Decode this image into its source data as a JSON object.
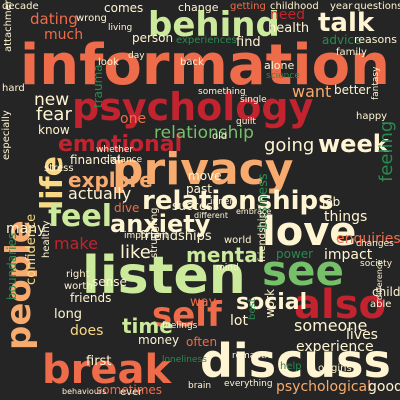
{
  "palette": {
    "background": "#252525",
    "red": "#c3232e",
    "orange": "#ef6c4b",
    "peach": "#f8ab6e",
    "yellow": "#f9d985",
    "cream": "#fff5d2",
    "mint": "#ccea9c",
    "green": "#76c06a",
    "dark_green": "#2a8a4f"
  },
  "words": [
    {
      "id": "information",
      "text": "information",
      "color": "#ef6c4b"
    },
    {
      "id": "psychology",
      "text": "psychology",
      "color": "#c3232e"
    },
    {
      "id": "privacy",
      "text": "privacy",
      "color": "#f8ab6e"
    },
    {
      "id": "listen",
      "text": "listen",
      "color": "#ccea9c"
    },
    {
      "id": "discuss",
      "text": "discuss",
      "color": "#fff5d2"
    },
    {
      "id": "break",
      "text": "break",
      "color": "#ef6c4b"
    },
    {
      "id": "self",
      "text": "self",
      "color": "#ef6c4b"
    },
    {
      "id": "see",
      "text": "see",
      "color": "#76c06a"
    },
    {
      "id": "also",
      "text": "also",
      "color": "#c3232e"
    },
    {
      "id": "people",
      "text": "people",
      "color": "#f8ab6e"
    },
    {
      "id": "life",
      "text": "life",
      "color": "#f9d985"
    },
    {
      "id": "behind",
      "text": "behind",
      "color": "#ccea9c"
    },
    {
      "id": "love",
      "text": "love",
      "color": "#fff5d2"
    },
    {
      "id": "feel",
      "text": "feel",
      "color": "#ccea9c"
    },
    {
      "id": "anxiety",
      "text": "anxiety",
      "color": "#fff5d2"
    },
    {
      "id": "relationships",
      "text": "relationships",
      "color": "#fff5d2"
    },
    {
      "id": "emotional",
      "text": "emotional",
      "color": "#c3232e"
    },
    {
      "id": "relationship",
      "text": "relationship",
      "color": "#76c06a"
    },
    {
      "id": "week",
      "text": "week",
      "color": "#fff5d2"
    },
    {
      "id": "talk",
      "text": "talk",
      "color": "#fff5d2"
    },
    {
      "id": "dating",
      "text": "dating",
      "color": "#ef6c4b"
    },
    {
      "id": "much",
      "text": "much",
      "color": "#ef6c4b"
    },
    {
      "id": "need",
      "text": "need",
      "color": "#c3232e"
    },
    {
      "id": "new",
      "text": "new",
      "color": "#fff5d2"
    },
    {
      "id": "fear",
      "text": "fear",
      "color": "#fff5d2"
    },
    {
      "id": "explore",
      "text": "explore",
      "color": "#f8ab6e"
    },
    {
      "id": "actually",
      "text": "actually",
      "color": "#fff5d2"
    },
    {
      "id": "mental",
      "text": "mental",
      "color": "#ccea9c"
    },
    {
      "id": "like",
      "text": "like",
      "color": "#fff5d2"
    },
    {
      "id": "make",
      "text": "make",
      "color": "#c3232e"
    },
    {
      "id": "social",
      "text": "social",
      "color": "#fff5d2"
    },
    {
      "id": "time",
      "text": "time",
      "color": "#ccea9c"
    },
    {
      "id": "someone",
      "text": "someone",
      "color": "#fff5d2"
    },
    {
      "id": "experience",
      "text": "experience",
      "color": "#fff5d2"
    },
    {
      "id": "psychological",
      "text": "psychological",
      "color": "#f8ab6e"
    },
    {
      "id": "going",
      "text": "going",
      "color": "#fff5d2"
    },
    {
      "id": "want",
      "text": "want",
      "color": "#f8ab6e"
    },
    {
      "id": "one",
      "text": "one",
      "color": "#ef6c4b"
    },
    {
      "id": "many",
      "text": "many",
      "color": "#fff5d2"
    },
    {
      "id": "things",
      "text": "things",
      "color": "#fff5d2"
    },
    {
      "id": "feeling",
      "text": "feeling",
      "color": "#2a8a4f"
    },
    {
      "id": "impact",
      "text": "impact",
      "color": "#fff5d2"
    },
    {
      "id": "friendships",
      "text": "friendships",
      "color": "#fff5d2"
    },
    {
      "id": "find",
      "text": "find",
      "color": "#fff5d2"
    },
    {
      "id": "health",
      "text": "health",
      "color": "#fff5d2"
    },
    {
      "id": "financial",
      "text": "financial",
      "color": "#fff5d2"
    },
    {
      "id": "enquiries",
      "text": "enquiries",
      "color": "#ef6c4b"
    },
    {
      "id": "business",
      "text": "business",
      "color": "#2a8a4f"
    },
    {
      "id": "lot",
      "text": "lot",
      "color": "#fff5d2"
    },
    {
      "id": "way",
      "text": "way",
      "color": "#ef6c4b"
    },
    {
      "id": "lives",
      "text": "lives",
      "color": "#fff5d2"
    },
    {
      "id": "friends",
      "text": "friends",
      "color": "#fff5d2"
    },
    {
      "id": "sense",
      "text": "sense",
      "color": "#fff5d2"
    },
    {
      "id": "long",
      "text": "long",
      "color": "#fff5d2"
    },
    {
      "id": "does",
      "text": "does",
      "color": "#f9d985"
    },
    {
      "id": "first",
      "text": "first",
      "color": "#fff5d2"
    },
    {
      "id": "sometimes",
      "text": "sometimes",
      "color": "#ef6c4b"
    },
    {
      "id": "often",
      "text": "often",
      "color": "#ef6c4b"
    },
    {
      "id": "money",
      "text": "money",
      "color": "#fff5d2"
    },
    {
      "id": "confidence",
      "text": "confidence",
      "color": "#f9d985"
    },
    {
      "id": "boundaries",
      "text": "boundaries",
      "color": "#2a8a4f"
    },
    {
      "id": "trauma",
      "text": "trauma",
      "color": "#2a8a4f"
    },
    {
      "id": "know",
      "text": "know",
      "color": "#fff5d2"
    },
    {
      "id": "move",
      "text": "move",
      "color": "#fff5d2"
    },
    {
      "id": "past",
      "text": "past",
      "color": "#fff5d2"
    },
    {
      "id": "dive",
      "text": "dive",
      "color": "#ef6c4b"
    },
    {
      "id": "success",
      "text": "success",
      "color": "#fff5d2"
    },
    {
      "id": "better",
      "text": "better",
      "color": "#fff5d2"
    },
    {
      "id": "advice",
      "text": "advice",
      "color": "#2a8a4f"
    },
    {
      "id": "reasons",
      "text": "reasons",
      "color": "#fff5d2"
    },
    {
      "id": "comes",
      "text": "comes",
      "color": "#fff5d2"
    },
    {
      "id": "change",
      "text": "change",
      "color": "#fff5d2"
    },
    {
      "id": "person",
      "text": "person",
      "color": "#fff5d2"
    },
    {
      "id": "getting",
      "text": "getting",
      "color": "#ef6c4b"
    },
    {
      "id": "childhood",
      "text": "childhood",
      "color": "#fff5d2"
    },
    {
      "id": "year",
      "text": "year",
      "color": "#fff5d2"
    },
    {
      "id": "questions",
      "text": "questions",
      "color": "#fff5d2"
    },
    {
      "id": "alone",
      "text": "alone",
      "color": "#fff5d2"
    },
    {
      "id": "science",
      "text": "science",
      "color": "#2a8a4f"
    },
    {
      "id": "experiences",
      "text": "experiences",
      "color": "#2a8a4f"
    },
    {
      "id": "attachment",
      "text": "attachment",
      "color": "#fff5d2"
    },
    {
      "id": "something",
      "text": "something",
      "color": "#fff5d2"
    },
    {
      "id": "different",
      "text": "different",
      "color": "#fff5d2"
    },
    {
      "id": "embrace",
      "text": "embrace",
      "color": "#fff5d2"
    },
    {
      "id": "job",
      "text": "job",
      "color": "#fff5d2"
    },
    {
      "id": "power",
      "text": "power",
      "color": "#2a8a4f"
    },
    {
      "id": "friendship",
      "text": "friendship",
      "color": "#fff5d2"
    },
    {
      "id": "origins",
      "text": "origins",
      "color": "#fff5d2"
    },
    {
      "id": "struggling",
      "text": "struggling",
      "color": "#fff5d2"
    },
    {
      "id": "healthy",
      "text": "healthy",
      "color": "#fff5d2"
    },
    {
      "id": "right",
      "text": "right",
      "color": "#fff5d2"
    },
    {
      "id": "worth",
      "text": "worth",
      "color": "#fff5d2"
    },
    {
      "id": "important",
      "text": "important",
      "color": "#fff5d2"
    },
    {
      "id": "work",
      "text": "work",
      "color": "#fff5d2"
    },
    {
      "id": "best",
      "text": "best",
      "color": "#2a8a4f"
    },
    {
      "id": "world",
      "text": "world",
      "color": "#fff5d2"
    },
    {
      "id": "romantic",
      "text": "romantic",
      "color": "#fff5d2"
    },
    {
      "id": "inner",
      "text": "inner",
      "color": "#fff5d2"
    },
    {
      "id": "child",
      "text": "child",
      "color": "#fff5d2"
    },
    {
      "id": "good",
      "text": "good",
      "color": "#fff5d2"
    },
    {
      "id": "ever",
      "text": "ever",
      "color": "#fff5d2"
    },
    {
      "id": "behaviours",
      "text": "behaviours",
      "color": "#fff5d2"
    },
    {
      "id": "brain",
      "text": "brain",
      "color": "#fff5d2"
    },
    {
      "id": "everything",
      "text": "everything",
      "color": "#fff5d2"
    },
    {
      "id": "help",
      "text": "help",
      "color": "#2a8a4f"
    },
    {
      "id": "able",
      "text": "able",
      "color": "#fff5d2"
    },
    {
      "id": "feelings",
      "text": "feelings",
      "color": "#fff5d2"
    },
    {
      "id": "loneliness",
      "text": "loneliness",
      "color": "#2a8a4f"
    },
    {
      "id": "decade",
      "text": "decade",
      "color": "#fff5d2"
    },
    {
      "id": "hard",
      "text": "hard",
      "color": "#fff5d2"
    },
    {
      "id": "especially",
      "text": "especially",
      "color": "#fff5d2"
    },
    {
      "id": "stress",
      "text": "stress",
      "color": "#fff5d2"
    },
    {
      "id": "living",
      "text": "living",
      "color": "#fff5d2"
    },
    {
      "id": "wrong",
      "text": "wrong",
      "color": "#fff5d2"
    },
    {
      "id": "guilt",
      "text": "guilt",
      "color": "#fff5d2"
    },
    {
      "id": "happy",
      "text": "happy",
      "color": "#fff5d2"
    },
    {
      "id": "changes",
      "text": "changes",
      "color": "#fff5d2"
    },
    {
      "id": "whether",
      "text": "whether",
      "color": "#fff5d2"
    },
    {
      "id": "distance",
      "text": "distance",
      "color": "#fff5d2"
    },
    {
      "id": "back",
      "text": "back",
      "color": "#fff5d2"
    },
    {
      "id": "look",
      "text": "look",
      "color": "#fff5d2"
    },
    {
      "id": "day",
      "text": "day",
      "color": "#fff5d2"
    },
    {
      "id": "old",
      "text": "old",
      "color": "#fff5d2"
    },
    {
      "id": "single",
      "text": "single",
      "color": "#fff5d2"
    },
    {
      "id": "fantasy",
      "text": "fantasy",
      "color": "#fff5d2"
    },
    {
      "id": "family",
      "text": "family",
      "color": "#fff5d2"
    },
    {
      "id": "society",
      "text": "society",
      "color": "#fff5d2"
    },
    {
      "id": "mind",
      "text": "mind",
      "color": "#fff5d2"
    },
    {
      "id": "difference",
      "text": "difference",
      "color": "#fff5d2"
    }
  ]
}
